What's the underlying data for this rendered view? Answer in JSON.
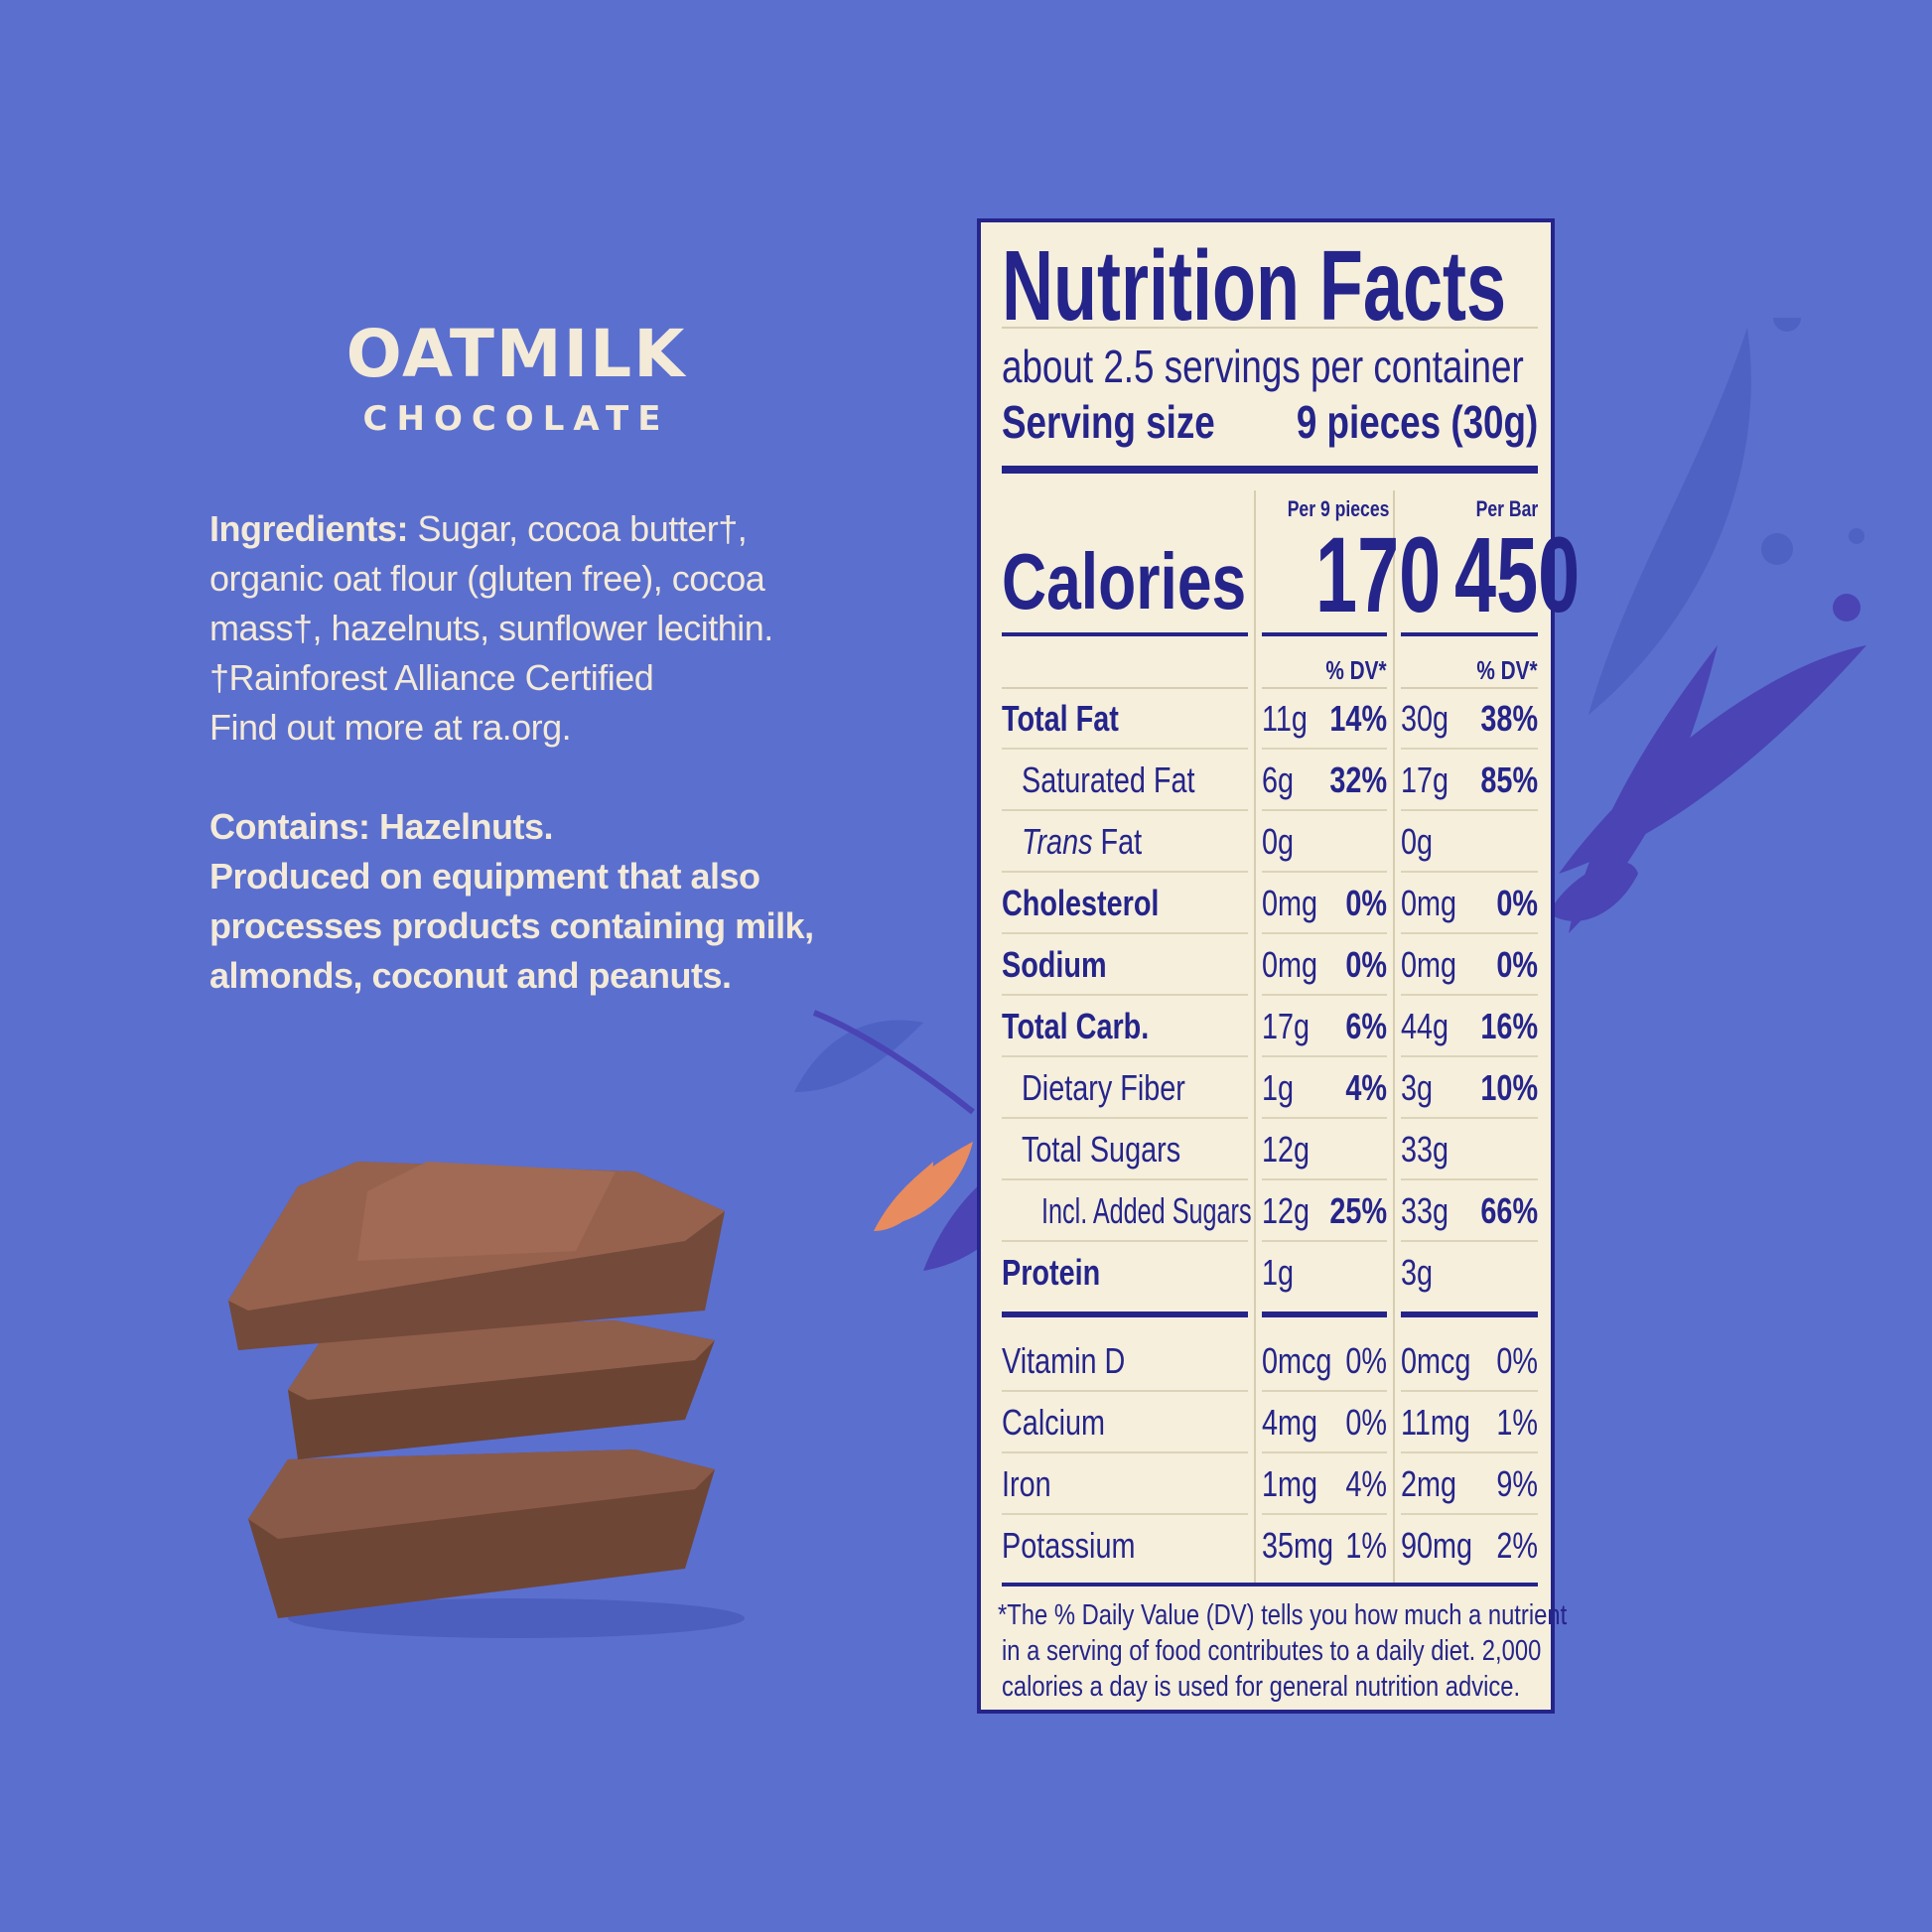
{
  "brand": {
    "line1": "OATMILK",
    "line2": "CHOCOLATE"
  },
  "ingredients": {
    "label": "Ingredients:",
    "lines": [
      " Sugar, cocoa butter†,",
      "organic oat flour (gluten free), cocoa",
      "mass†, hazelnuts, sunflower lecithin.",
      "†Rainforest Alliance Certified",
      "Find out more at ra.org."
    ]
  },
  "allergens": {
    "lines": [
      "Contains: Hazelnuts.",
      "Produced on equipment that also",
      "processes products containing milk,",
      "almonds, coconut and peanuts."
    ]
  },
  "colors": {
    "background": "#5b6fce",
    "panel": "#f5efdc",
    "ink": "#25248a",
    "cream_text": "#f3ead8"
  },
  "nutrition": {
    "title": "Nutrition Facts",
    "servings": "about 2.5 servings per container",
    "serving_size_label": "Serving size",
    "serving_size_value": "9 pieces (30g)",
    "col1_header": "Per 9 pieces",
    "col2_header": "Per Bar",
    "calories_label": "Calories",
    "calories_col1": "170",
    "calories_col2": "450",
    "dv_header": "% DV*",
    "rows": [
      {
        "label": "Total Fat",
        "bold": true,
        "indent": 0,
        "a1": "11g",
        "p1": "14%",
        "a2": "30g",
        "p2": "38%"
      },
      {
        "label": "Saturated Fat",
        "bold": false,
        "indent": 1,
        "a1": "6g",
        "p1": "32%",
        "a2": "17g",
        "p2": "85%"
      },
      {
        "label_italic": "Trans",
        "label": " Fat",
        "bold": false,
        "indent": 1,
        "a1": "0g",
        "p1": "",
        "a2": "0g",
        "p2": ""
      },
      {
        "label": "Cholesterol",
        "bold": true,
        "indent": 0,
        "a1": "0mg",
        "p1": "0%",
        "a2": "0mg",
        "p2": "0%"
      },
      {
        "label": "Sodium",
        "bold": true,
        "indent": 0,
        "a1": "0mg",
        "p1": "0%",
        "a2": "0mg",
        "p2": "0%"
      },
      {
        "label": "Total Carb.",
        "bold": true,
        "indent": 0,
        "a1": "17g",
        "p1": "6%",
        "a2": "44g",
        "p2": "16%"
      },
      {
        "label": "Dietary Fiber",
        "bold": false,
        "indent": 1,
        "a1": "1g",
        "p1": "4%",
        "a2": "3g",
        "p2": "10%"
      },
      {
        "label": "Total Sugars",
        "bold": false,
        "indent": 1,
        "a1": "12g",
        "p1": "",
        "a2": "33g",
        "p2": ""
      },
      {
        "label": "Incl. Added Sugars",
        "bold": false,
        "indent": 2,
        "a1": "12g",
        "p1": "25%",
        "a2": "33g",
        "p2": "66%"
      },
      {
        "label": "Protein",
        "bold": true,
        "indent": 0,
        "a1": "1g",
        "p1": "",
        "a2": "3g",
        "p2": ""
      }
    ],
    "vitamins": [
      {
        "label": "Vitamin D",
        "a1": "0mcg",
        "p1": "0%",
        "a2": "0mcg",
        "p2": "0%"
      },
      {
        "label": "Calcium",
        "a1": "4mg",
        "p1": "0%",
        "a2": "11mg",
        "p2": "1%"
      },
      {
        "label": "Iron",
        "a1": "1mg",
        "p1": "4%",
        "a2": "2mg",
        "p2": "9%"
      },
      {
        "label": "Potassium",
        "a1": "35mg",
        "p1": "1%",
        "a2": "90mg",
        "p2": "2%"
      }
    ],
    "footnote": [
      "*The % Daily Value (DV) tells you how much a nutrient",
      "in a serving of food contributes to a daily diet. 2,000",
      "calories a day is used for general nutrition advice."
    ]
  }
}
